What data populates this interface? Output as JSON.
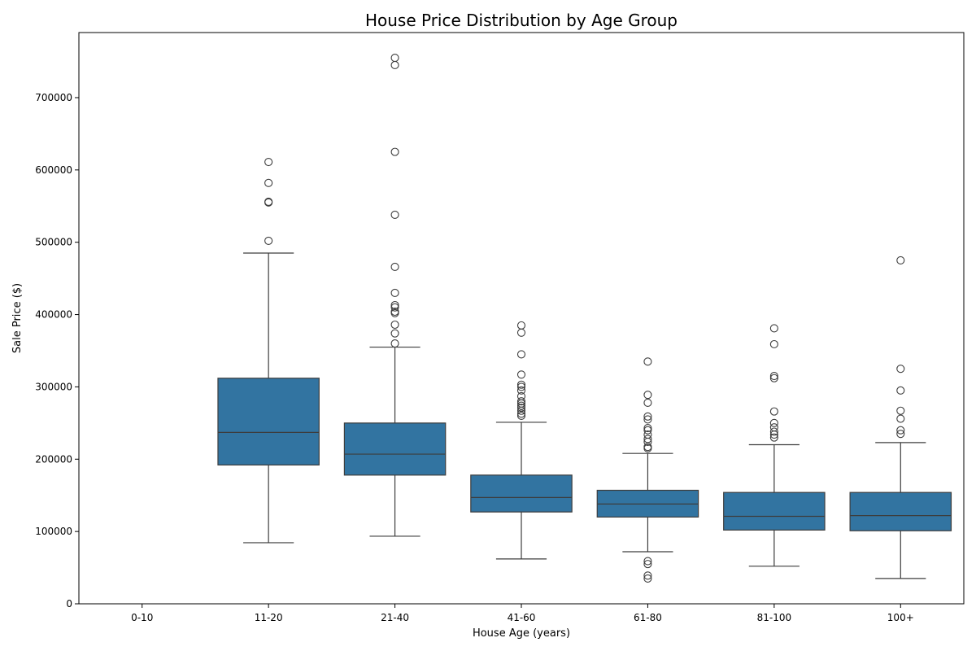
{
  "chart_data": {
    "type": "box",
    "title": "House Price Distribution by Age Group",
    "xlabel": "House Age (years)",
    "ylabel": "Sale Price ($)",
    "ylim": [
      0,
      790000
    ],
    "yticks": [
      0,
      100000,
      200000,
      300000,
      400000,
      500000,
      600000,
      700000
    ],
    "box_color": "#3274a1",
    "categories": [
      "0-10",
      "11-20",
      "21-40",
      "41-60",
      "61-80",
      "81-100",
      "100+"
    ],
    "boxes": [
      null,
      {
        "whisker_low": 84500,
        "q1": 192000,
        "median": 237000,
        "q3": 312000,
        "whisker_high": 485000,
        "outliers": [
          502000,
          555000,
          556000,
          582000,
          611000
        ]
      },
      {
        "whisker_low": 93500,
        "q1": 178000,
        "median": 207000,
        "q3": 250000,
        "whisker_high": 355000,
        "outliers": [
          360000,
          374000,
          386000,
          402000,
          404000,
          410000,
          413000,
          430000,
          466000,
          538000,
          625000,
          745000,
          755000
        ]
      },
      {
        "whisker_low": 62000,
        "q1": 127000,
        "median": 147000,
        "q3": 178000,
        "whisker_high": 251000,
        "outliers": [
          260000,
          263000,
          267000,
          271000,
          274000,
          277000,
          280000,
          287000,
          295000,
          300000,
          303000,
          317000,
          345000,
          375000,
          385000
        ]
      },
      {
        "whisker_low": 72000,
        "q1": 120000,
        "median": 138000,
        "q3": 157000,
        "whisker_high": 208000,
        "outliers": [
          35000,
          39000,
          55000,
          59000,
          215000,
          217000,
          224000,
          228000,
          234000,
          240000,
          243000,
          255000,
          259000,
          278000,
          289000,
          335000
        ]
      },
      {
        "whisker_low": 52000,
        "q1": 102000,
        "median": 121000,
        "q3": 154000,
        "whisker_high": 220000,
        "outliers": [
          230000,
          234000,
          238000,
          244000,
          250000,
          266000,
          312000,
          315000,
          359000,
          381000
        ]
      },
      {
        "whisker_low": 35000,
        "q1": 101000,
        "median": 122000,
        "q3": 154000,
        "whisker_high": 223000,
        "outliers": [
          235000,
          240000,
          256000,
          267000,
          295000,
          325000,
          475000
        ]
      }
    ]
  }
}
